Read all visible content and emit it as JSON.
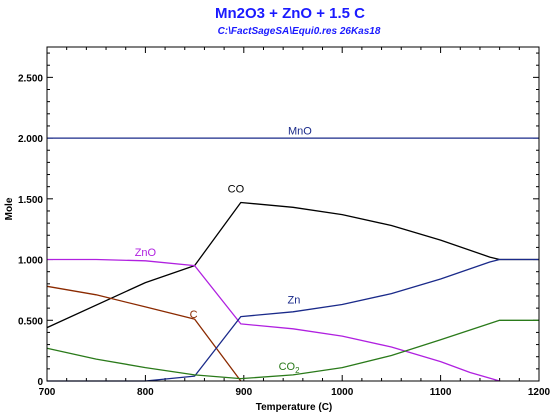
{
  "chart_data": {
    "type": "line",
    "title": "Mn2O3  +  ZnO  +  1.5 C",
    "subtitle": "C:\\FactSageSA\\Equi0.res  26Kas18",
    "xlabel": "Temperature (C)",
    "ylabel": "Mole",
    "xlim": [
      700,
      1200
    ],
    "ylim": [
      0,
      2.75
    ],
    "x_ticks": [
      {
        "value": 700,
        "label": "700"
      },
      {
        "value": 800,
        "label": "800"
      },
      {
        "value": 900,
        "label": "900"
      },
      {
        "value": 1000,
        "label": "1000"
      },
      {
        "value": 1100,
        "label": "1100"
      },
      {
        "value": 1200,
        "label": "1200"
      }
    ],
    "y_ticks": [
      {
        "value": 0,
        "label": "0"
      },
      {
        "value": 0.5,
        "label": "0.500"
      },
      {
        "value": 1.0,
        "label": "1.000"
      },
      {
        "value": 1.5,
        "label": "1.500"
      },
      {
        "value": 2.0,
        "label": "2.000"
      },
      {
        "value": 2.5,
        "label": "2.500"
      }
    ],
    "grid": false,
    "series": [
      {
        "name": "MnO",
        "color": "#1a2a8a",
        "label_at": [
          957,
          2.03
        ],
        "label_anchor": "middle",
        "points": [
          [
            700,
            2.0
          ],
          [
            1200,
            2.0
          ]
        ]
      },
      {
        "name": "CO",
        "color": "#000000",
        "label_at": [
          892,
          1.55
        ],
        "label_anchor": "middle",
        "points": [
          [
            700,
            0.44
          ],
          [
            800,
            0.81
          ],
          [
            850,
            0.95
          ],
          [
            897,
            1.47
          ],
          [
            950,
            1.43
          ],
          [
            1000,
            1.37
          ],
          [
            1050,
            1.28
          ],
          [
            1100,
            1.16
          ],
          [
            1150,
            1.02
          ],
          [
            1160,
            1.0
          ],
          [
            1200,
            1.0
          ]
        ]
      },
      {
        "name": "ZnO",
        "color": "#b020e0",
        "label_at": [
          800,
          1.03
        ],
        "label_anchor": "middle",
        "points": [
          [
            700,
            1.0
          ],
          [
            750,
            1.0
          ],
          [
            800,
            0.99
          ],
          [
            850,
            0.95
          ],
          [
            897,
            0.47
          ],
          [
            950,
            0.43
          ],
          [
            1000,
            0.37
          ],
          [
            1050,
            0.28
          ],
          [
            1100,
            0.16
          ],
          [
            1130,
            0.07
          ],
          [
            1160,
            0.0
          ]
        ]
      },
      {
        "name": "C",
        "color": "#8b2a00",
        "label_at": [
          849,
          0.52
        ],
        "label_anchor": "middle",
        "points": [
          [
            700,
            0.78
          ],
          [
            750,
            0.71
          ],
          [
            800,
            0.61
          ],
          [
            850,
            0.51
          ],
          [
            897,
            0.0
          ]
        ]
      },
      {
        "name": "Zn",
        "color": "#1a2a8a",
        "label_at": [
          951,
          0.64
        ],
        "label_anchor": "middle",
        "points": [
          [
            700,
            0.0
          ],
          [
            800,
            0.0
          ],
          [
            850,
            0.04
          ],
          [
            897,
            0.53
          ],
          [
            950,
            0.57
          ],
          [
            1000,
            0.63
          ],
          [
            1050,
            0.72
          ],
          [
            1100,
            0.84
          ],
          [
            1150,
            0.98
          ],
          [
            1160,
            1.0
          ],
          [
            1200,
            1.0
          ]
        ]
      },
      {
        "name": "CO2",
        "display_main": "CO",
        "display_sub": "2",
        "color": "#2a7a1a",
        "label_at": [
          946,
          0.09
        ],
        "label_anchor": "middle",
        "points": [
          [
            700,
            0.27
          ],
          [
            750,
            0.18
          ],
          [
            800,
            0.11
          ],
          [
            850,
            0.05
          ],
          [
            897,
            0.02
          ],
          [
            950,
            0.05
          ],
          [
            1000,
            0.11
          ],
          [
            1050,
            0.21
          ],
          [
            1100,
            0.34
          ],
          [
            1160,
            0.5
          ],
          [
            1200,
            0.5
          ]
        ]
      }
    ]
  }
}
